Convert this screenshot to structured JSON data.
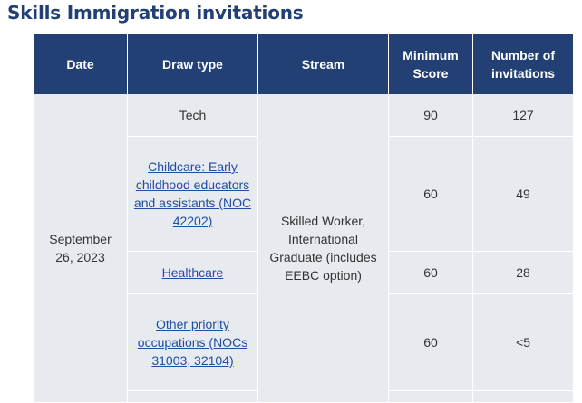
{
  "page": {
    "title": "Skills Immigration invitations"
  },
  "table": {
    "headers": {
      "date": "Date",
      "draw_type": "Draw type",
      "stream": "Stream",
      "min_score": "Minimum Score",
      "num_invitations": "Number of invitations"
    },
    "group": {
      "date": "September 26, 2023",
      "stream": "Skilled Worker, International Graduate (includes EEBC option)"
    },
    "rows": [
      {
        "draw_type": "Tech",
        "is_link": false,
        "min_score": "90",
        "invitations": "127"
      },
      {
        "draw_type": "Childcare: Early childhood educators and assistants (NOC 42202)",
        "is_link": true,
        "min_score": "60",
        "invitations": "49"
      },
      {
        "draw_type": "Healthcare",
        "is_link": true,
        "min_score": "60",
        "invitations": "28"
      },
      {
        "draw_type": "Other priority occupations (NOCs 31003, 32104)",
        "is_link": true,
        "min_score": "60",
        "invitations": "<5"
      }
    ]
  },
  "colors": {
    "header_bg": "#234075",
    "cell_bg": "#e7eaef",
    "title": "#234075",
    "link": "#1f4ea3"
  }
}
